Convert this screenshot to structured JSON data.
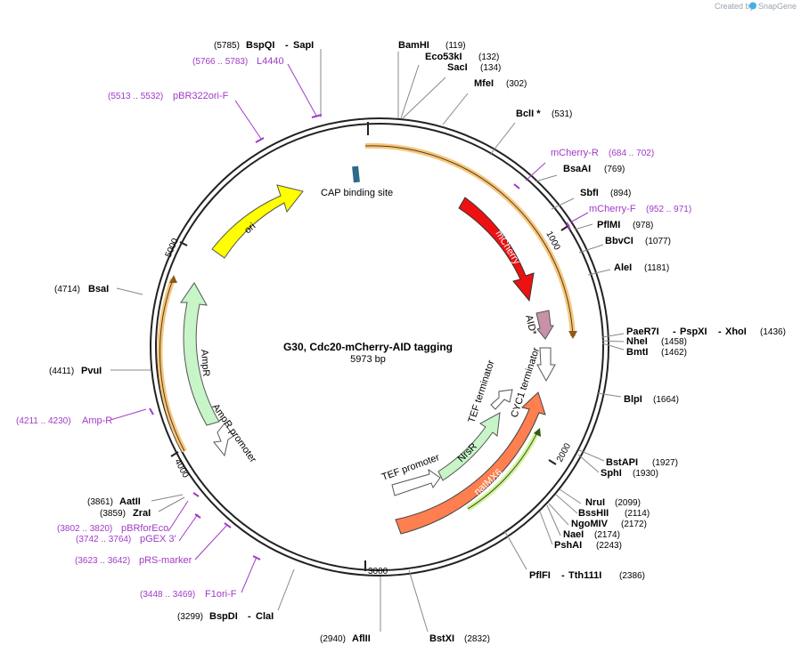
{
  "branding": {
    "prefix": "Created by",
    "name": "SnapGene"
  },
  "plasmid": {
    "name": "G30, Cdc20-mCherry-AID tagging",
    "size_label": "5973 bp",
    "total_bp": 5973
  },
  "colors": {
    "backbone": "#222222",
    "enzyme_line": "#888888",
    "primer": "#a03ac7",
    "orf_halo": "#f5c77e"
  },
  "ticks": [
    {
      "label": "1000",
      "bp": 1000
    },
    {
      "label": "2000",
      "bp": 2000
    },
    {
      "label": "3000",
      "bp": 3000
    },
    {
      "label": "4000",
      "bp": 4000
    },
    {
      "label": "5000",
      "bp": 5000
    }
  ],
  "enzymes": [
    {
      "name": "BspQI",
      "name2": "SapI",
      "pos": "(5785)",
      "bp": 5785,
      "side": "left"
    },
    {
      "name": "BamHI",
      "pos": "(119)",
      "bp": 119,
      "side": "right"
    },
    {
      "name": "Eco53kI",
      "pos": "(132)",
      "bp": 132,
      "side": "right"
    },
    {
      "name": "SacI",
      "pos": "(134)",
      "bp": 134,
      "side": "right"
    },
    {
      "name": "MfeI",
      "pos": "(302)",
      "bp": 302,
      "side": "right"
    },
    {
      "name": "BclI *",
      "pos": "(531)",
      "bp": 531,
      "side": "right"
    },
    {
      "name": "BsaAI",
      "pos": "(769)",
      "bp": 769,
      "side": "right"
    },
    {
      "name": "SbfI",
      "pos": "(894)",
      "bp": 894,
      "side": "right"
    },
    {
      "name": "PflMI",
      "pos": "(978)",
      "bp": 978,
      "side": "right"
    },
    {
      "name": "BbvCI",
      "pos": "(1077)",
      "bp": 1077,
      "side": "right"
    },
    {
      "name": "AleI",
      "pos": "(1181)",
      "bp": 1181,
      "side": "right"
    },
    {
      "name": "PaeR7I",
      "name2": "PspXI",
      "name3": "XhoI",
      "pos": "(1436)",
      "bp": 1436,
      "side": "right"
    },
    {
      "name": "NheI",
      "pos": "(1458)",
      "bp": 1458,
      "side": "right"
    },
    {
      "name": "BmtI",
      "pos": "(1462)",
      "bp": 1462,
      "side": "right"
    },
    {
      "name": "BlpI",
      "pos": "(1664)",
      "bp": 1664,
      "side": "right"
    },
    {
      "name": "BstAPI",
      "pos": "(1927)",
      "bp": 1927,
      "side": "right"
    },
    {
      "name": "SphI",
      "pos": "(1930)",
      "bp": 1930,
      "side": "right"
    },
    {
      "name": "NruI",
      "pos": "(2099)",
      "bp": 2099,
      "side": "right"
    },
    {
      "name": "BssHII",
      "pos": "(2114)",
      "bp": 2114,
      "side": "right"
    },
    {
      "name": "NgoMIV",
      "pos": "(2172)",
      "bp": 2172,
      "side": "right"
    },
    {
      "name": "NaeI",
      "pos": "(2174)",
      "bp": 2174,
      "side": "right"
    },
    {
      "name": "PshAI",
      "pos": "(2243)",
      "bp": 2243,
      "side": "right"
    },
    {
      "name": "PflFI",
      "name2": "Tth111I",
      "pos": "(2386)",
      "bp": 2386,
      "side": "right"
    },
    {
      "name": "BstXI",
      "pos": "(2832)",
      "bp": 2832,
      "side": "right"
    },
    {
      "name": "AflII",
      "pos": "(2940)",
      "bp": 2940,
      "side": "left"
    },
    {
      "name": "BspDI",
      "name2": "ClaI",
      "pos": "(3299)",
      "bp": 3299,
      "side": "left"
    },
    {
      "name": "ZraI",
      "pos": "(3859)",
      "bp": 3859,
      "side": "left"
    },
    {
      "name": "AatII",
      "pos": "(3861)",
      "bp": 3861,
      "side": "left"
    },
    {
      "name": "PvuI",
      "pos": "(4411)",
      "bp": 4411,
      "side": "left"
    },
    {
      "name": "BsaI",
      "pos": "(4714)",
      "bp": 4714,
      "side": "left"
    }
  ],
  "primers": [
    {
      "name": "L4440",
      "range": "(5766 .. 5783)",
      "bp": 5774,
      "side": "left"
    },
    {
      "name": "pBR322ori-F",
      "range": "(5513 .. 5532)",
      "bp": 5522,
      "side": "left"
    },
    {
      "name": "mCherry-R",
      "range": "(684 .. 702)",
      "bp": 693,
      "side": "right"
    },
    {
      "name": "mCherry-F",
      "range": "(952 .. 971)",
      "bp": 961,
      "side": "right"
    },
    {
      "name": "Amp-R",
      "range": "(4211 .. 4230)",
      "bp": 4220,
      "side": "left"
    },
    {
      "name": "pBRforEco",
      "range": "(3802 .. 3820)",
      "bp": 3811,
      "side": "left"
    },
    {
      "name": "pGEX 3'",
      "range": "(3742 .. 3764)",
      "bp": 3753,
      "side": "left"
    },
    {
      "name": "pRS-marker",
      "range": "(3623 .. 3642)",
      "bp": 3632,
      "side": "left"
    },
    {
      "name": "F1ori-F",
      "range": "(3448 .. 3469)",
      "bp": 3458,
      "side": "left"
    }
  ],
  "features": [
    {
      "name": "CAP binding site"
    },
    {
      "name": "ori"
    },
    {
      "name": "mCherry"
    },
    {
      "name": "AID*"
    },
    {
      "name": "CYC1 terminator"
    },
    {
      "name": "AmpR"
    },
    {
      "name": "AmpR promoter"
    },
    {
      "name": "TEF terminator"
    },
    {
      "name": "NrsR"
    },
    {
      "name": "TEF promoter"
    },
    {
      "name": "natMX6"
    }
  ]
}
